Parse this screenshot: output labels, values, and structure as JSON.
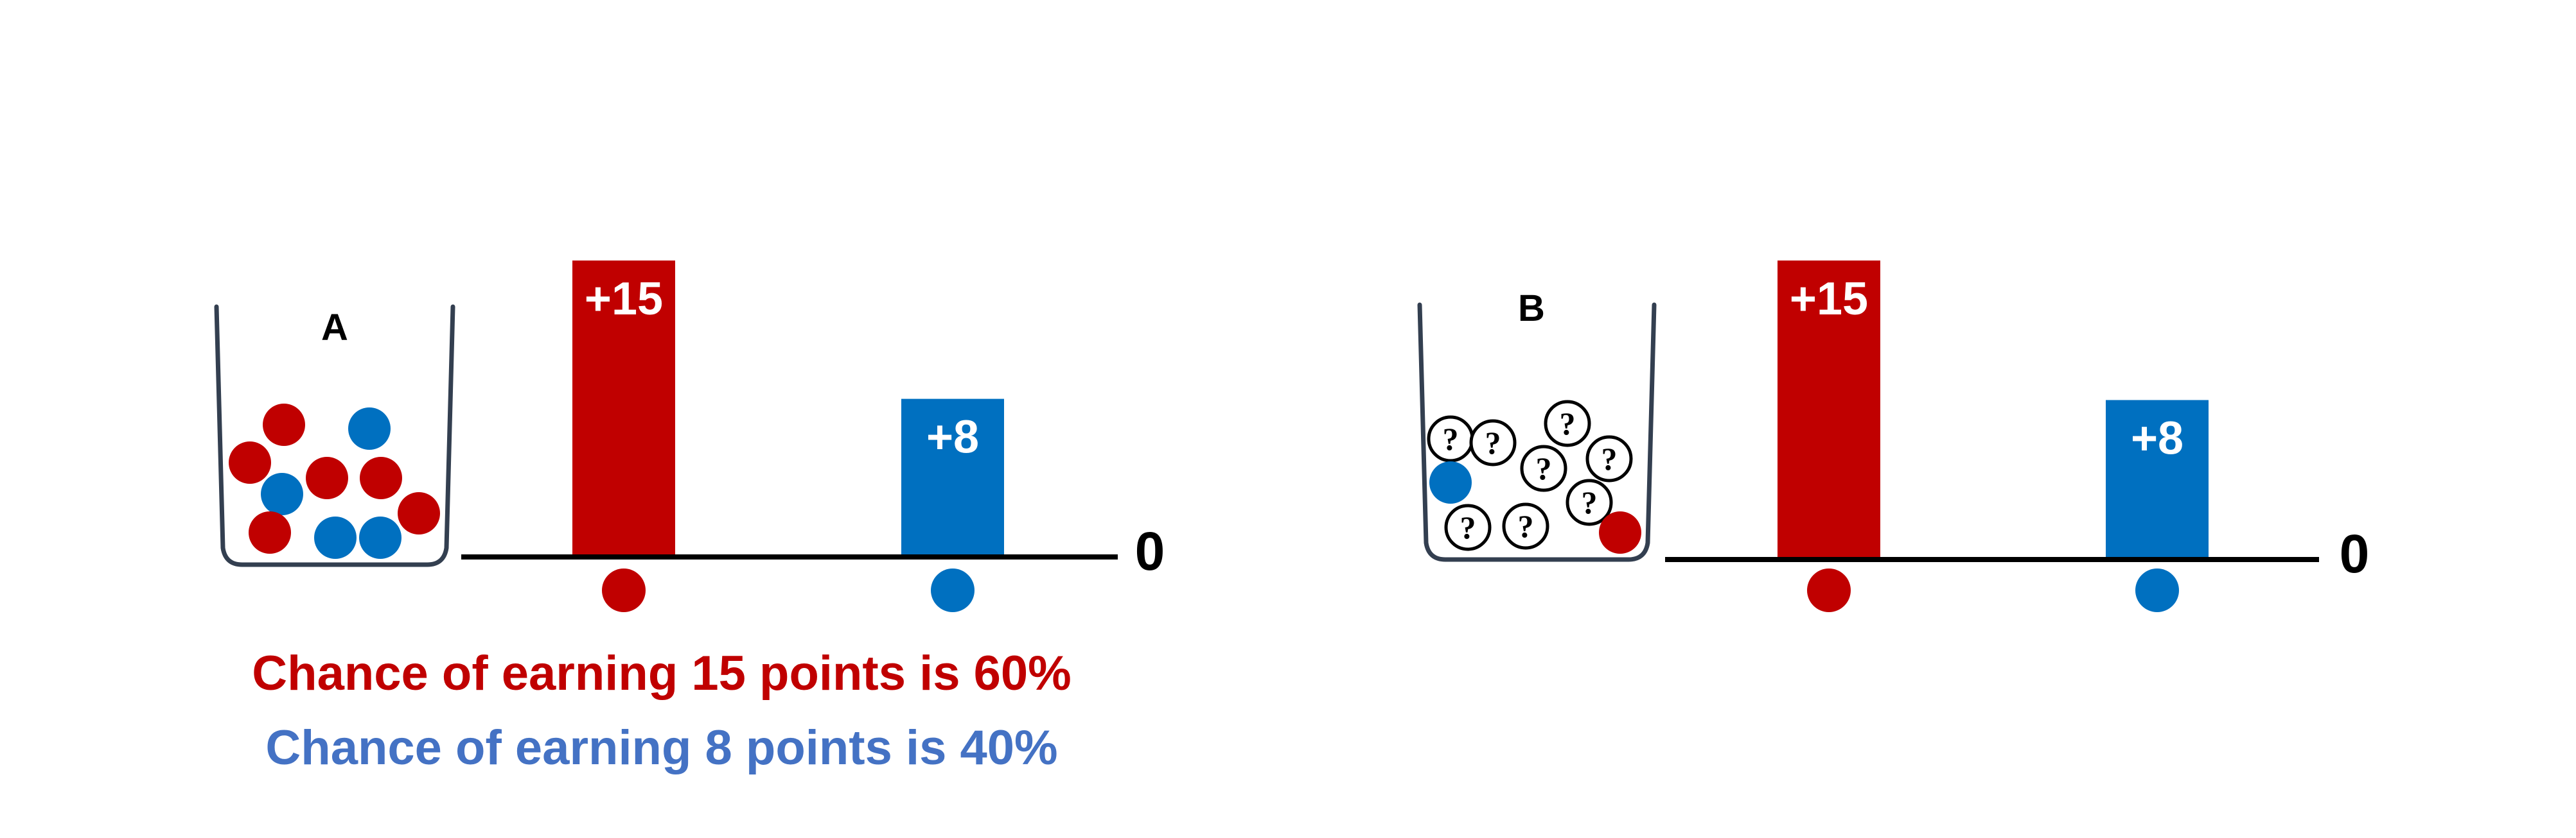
{
  "colors": {
    "red": "#c00000",
    "blue": "#0070c0",
    "caption_blue": "#4472c4",
    "ink": "#000000"
  },
  "panels": [
    {
      "urn_label": "A",
      "bars": [
        {
          "label": "+15",
          "value": 15,
          "color": "red"
        },
        {
          "label": "+8",
          "value": 8,
          "color": "blue"
        }
      ],
      "zero_label": "0",
      "balls": [
        {
          "kind": "red"
        },
        {
          "kind": "blue"
        },
        {
          "kind": "red"
        },
        {
          "kind": "blue"
        },
        {
          "kind": "red"
        },
        {
          "kind": "red"
        },
        {
          "kind": "red"
        },
        {
          "kind": "red"
        },
        {
          "kind": "blue"
        },
        {
          "kind": "blue"
        }
      ]
    },
    {
      "urn_label": "B",
      "bars": [
        {
          "label": "+15",
          "value": 15,
          "color": "red"
        },
        {
          "label": "+8",
          "value": 8,
          "color": "blue"
        }
      ],
      "zero_label": "0",
      "balls": [
        {
          "kind": "unknown",
          "text": "?"
        },
        {
          "kind": "unknown",
          "text": "?"
        },
        {
          "kind": "unknown",
          "text": "?"
        },
        {
          "kind": "unknown",
          "text": "?"
        },
        {
          "kind": "unknown",
          "text": "?"
        },
        {
          "kind": "unknown",
          "text": "?"
        },
        {
          "kind": "unknown",
          "text": "?"
        },
        {
          "kind": "unknown",
          "text": "?"
        },
        {
          "kind": "blue"
        },
        {
          "kind": "red"
        }
      ]
    }
  ],
  "captions": {
    "red": "Chance of earning 15 points is 60%",
    "blue": "Chance of earning 8 points is 40%"
  }
}
